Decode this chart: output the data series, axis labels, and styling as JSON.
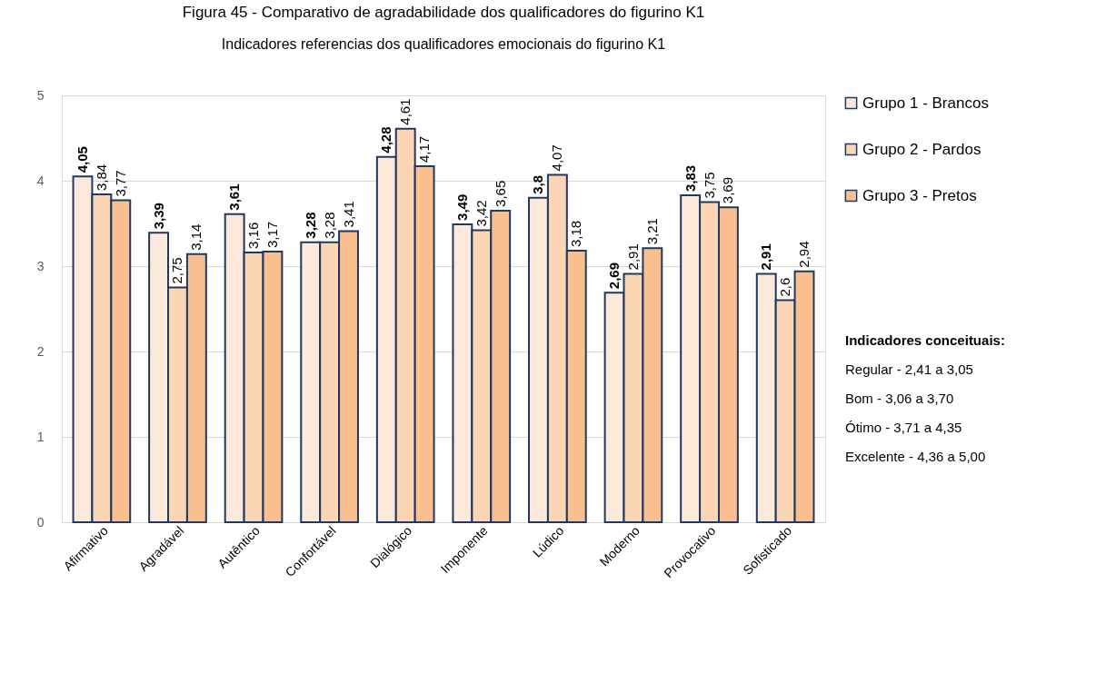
{
  "chart_data": {
    "type": "bar",
    "title": "Figura 45 - Comparativo de agradabilidade dos qualificadores do figurino K1",
    "subtitle": "Indicadores referencias dos qualificadores emocionais do figurino K1",
    "categories": [
      "Afirmativo",
      "Agradável",
      "Autêntico",
      "Confortável",
      "Dialógico",
      "Imponente",
      "Lúdico",
      "Moderno",
      "Provocativo",
      "Sofisticado"
    ],
    "series": [
      {
        "name": "Grupo 1 - Brancos",
        "color": "#fde9d9",
        "values": [
          4.05,
          3.39,
          3.61,
          3.28,
          4.28,
          3.49,
          3.8,
          2.69,
          3.83,
          2.91
        ],
        "value_labels": [
          "4,05",
          "3,39",
          "3,61",
          "3,28",
          "4,28",
          "3,49",
          "3,8",
          "2,69",
          "3,83",
          "2,91"
        ]
      },
      {
        "name": "Grupo 2 - Pardos",
        "color": "#fcd5b4",
        "values": [
          3.84,
          2.75,
          3.16,
          3.28,
          4.61,
          3.42,
          4.07,
          2.91,
          3.75,
          2.6
        ],
        "value_labels": [
          "3,84",
          "2,75",
          "3,16",
          "3,28",
          "4,61",
          "3,42",
          "4,07",
          "2,91",
          "3,75",
          "2,6"
        ]
      },
      {
        "name": "Grupo 3 - Pretos",
        "color": "#fabf8f",
        "values": [
          3.77,
          3.14,
          3.17,
          3.41,
          4.17,
          3.65,
          3.18,
          3.21,
          3.69,
          2.94
        ],
        "value_labels": [
          "3,77",
          "3,14",
          "3,17",
          "3,41",
          "4,17",
          "3,65",
          "3,18",
          "3,21",
          "3,69",
          "2,94"
        ]
      }
    ],
    "ylim": [
      0,
      5
    ],
    "yticks": [
      0,
      1,
      2,
      3,
      4,
      5
    ],
    "grid": "y",
    "legend": "right",
    "annotations": [
      "Indicadores conceituais:",
      "Regular - 2,41 a 3,05",
      "Bom - 3,06 a 3,70",
      "Ótimo - 3,71 a 4,35",
      "Excelente - 4,36 a 5,00"
    ]
  }
}
